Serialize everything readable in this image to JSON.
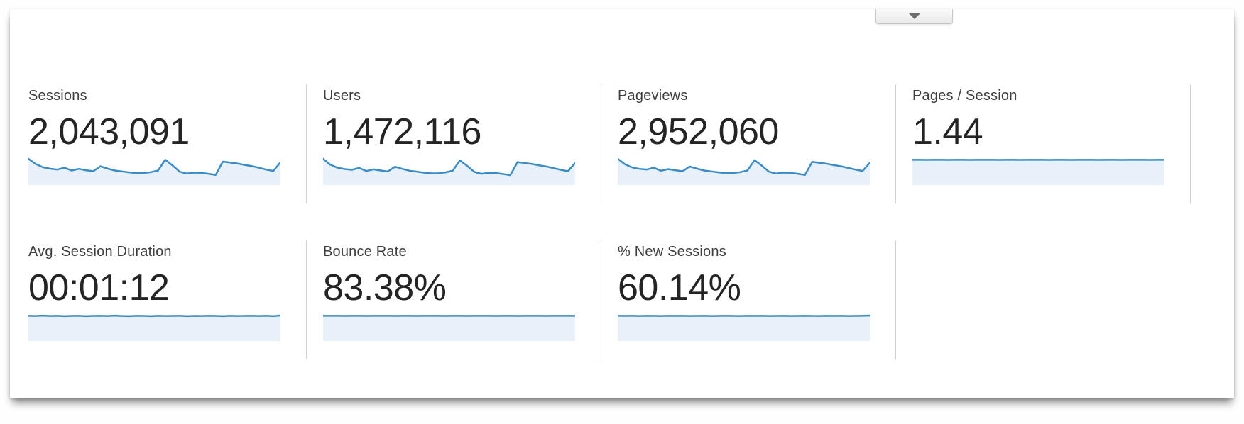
{
  "colors": {
    "spark_line": "#3a8cc8",
    "spark_fill": "#e8f1fa",
    "divider": "#d2d2d2",
    "label_text": "#3d3d3d",
    "value_text": "#242424"
  },
  "controls": {
    "collapse_icon": "triangle-down"
  },
  "chart_data": [
    {
      "type": "area",
      "title": "Sessions",
      "value": "2,043,091",
      "x_axis": "time period (sparkline, no tick labels shown)",
      "y_axis": "relative scale (no axis shown)",
      "values_relative": [
        100,
        78,
        64,
        58,
        54,
        62,
        50,
        57,
        51,
        47,
        68,
        58,
        50,
        46,
        42,
        39,
        39,
        43,
        50,
        96,
        72,
        45,
        37,
        41,
        40,
        36,
        31,
        88,
        84,
        80,
        74,
        69,
        62,
        54,
        48,
        85
      ]
    },
    {
      "type": "area",
      "title": "Users",
      "value": "1,472,116",
      "x_axis": "time period (sparkline, no tick labels shown)",
      "y_axis": "relative scale (no axis shown)",
      "values_relative": [
        100,
        75,
        62,
        56,
        53,
        61,
        48,
        55,
        50,
        46,
        66,
        57,
        49,
        45,
        41,
        38,
        38,
        42,
        49,
        93,
        70,
        44,
        36,
        40,
        39,
        35,
        30,
        86,
        82,
        78,
        72,
        67,
        60,
        53,
        47,
        82
      ]
    },
    {
      "type": "area",
      "title": "Pageviews",
      "value": "2,952,060",
      "x_axis": "time period (sparkline, no tick labels shown)",
      "y_axis": "relative scale (no axis shown)",
      "values_relative": [
        100,
        77,
        63,
        57,
        54,
        62,
        49,
        56,
        51,
        47,
        67,
        58,
        50,
        46,
        42,
        39,
        39,
        43,
        50,
        94,
        71,
        45,
        37,
        41,
        40,
        36,
        31,
        87,
        83,
        79,
        73,
        68,
        61,
        54,
        48,
        83
      ]
    },
    {
      "type": "area",
      "title": "Pages / Session",
      "value": "1.44",
      "x_axis": "time period (sparkline, no tick labels shown)",
      "y_axis": "relative scale (no axis shown); series is nearly constant",
      "values_relative": [
        96,
        96,
        95.5,
        96,
        96,
        95.5,
        96,
        96,
        95.5,
        96,
        96,
        96,
        95.5,
        96,
        96,
        95.5,
        96,
        96,
        96,
        95.5,
        96,
        96,
        95.5,
        96,
        96,
        96,
        95.5,
        96,
        96,
        95.5,
        96,
        96,
        96,
        95.5,
        96,
        96
      ]
    },
    {
      "type": "area",
      "title": "Avg. Session Duration",
      "value": "00:01:12",
      "x_axis": "time period (sparkline, no tick labels shown)",
      "y_axis": "relative scale (no axis shown); series is nearly constant with slight ripple",
      "values_relative": [
        96,
        95,
        96.5,
        95,
        96,
        94.5,
        95.5,
        96,
        94.5,
        95.5,
        96,
        95,
        96.5,
        95,
        94.5,
        96,
        95.5,
        94.5,
        96,
        95,
        95.5,
        96,
        94.5,
        95.5,
        95,
        96,
        95.5,
        94.5,
        96,
        95,
        95.5,
        96,
        95,
        96,
        94.5,
        97
      ]
    },
    {
      "type": "area",
      "title": "Bounce Rate",
      "value": "83.38%",
      "x_axis": "time period (sparkline, no tick labels shown)",
      "y_axis": "relative scale (no axis shown); series is nearly constant",
      "values_relative": [
        96,
        96,
        96,
        95.5,
        96,
        96,
        95.5,
        96,
        96,
        96,
        95.5,
        96,
        96,
        95.5,
        96,
        96,
        96,
        95.5,
        96,
        96,
        95.5,
        96,
        96,
        96,
        95.5,
        96,
        96,
        95.5,
        96,
        96,
        96,
        95.5,
        96,
        96,
        96,
        96
      ]
    },
    {
      "type": "area",
      "title": "% New Sessions",
      "value": "60.14%",
      "x_axis": "time period (sparkline, no tick labels shown)",
      "y_axis": "relative scale (no axis shown); series is nearly constant with slight ripple",
      "values_relative": [
        96,
        95.5,
        96,
        95,
        96,
        95.5,
        95,
        96,
        95.5,
        96,
        95,
        95.5,
        96,
        95,
        95.5,
        96,
        95.5,
        95,
        96,
        95.5,
        96,
        95,
        95.5,
        96,
        95,
        95.5,
        96,
        95.5,
        95,
        96,
        95.5,
        96,
        95,
        95.5,
        96,
        97
      ]
    }
  ]
}
